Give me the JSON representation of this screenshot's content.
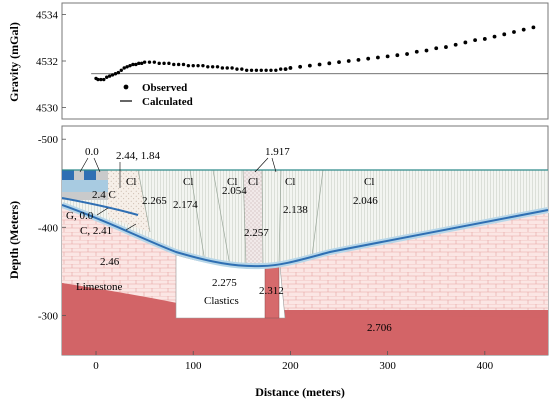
{
  "chart_data": [
    {
      "type": "scatter",
      "panel": "gravity",
      "ylabel": "Gravity (mGal)",
      "ylim": [
        4529.5,
        4534.5
      ],
      "xlim": [
        -35,
        465
      ],
      "yticks": [
        "4530",
        "4532",
        "4534"
      ],
      "ytick_values": [
        4530,
        4532,
        4534
      ],
      "legend": {
        "position": "left",
        "entries": [
          "Observed",
          "Calculated"
        ]
      },
      "calculated_line": {
        "x": [
          -5,
          465
        ],
        "y": [
          4531.45,
          4531.45
        ]
      },
      "series": [
        {
          "name": "Observed",
          "x": [
            0,
            2,
            5,
            8,
            11,
            14,
            17,
            20,
            23,
            26,
            29,
            32,
            35,
            38,
            41,
            44,
            47,
            50,
            55,
            60,
            65,
            70,
            75,
            80,
            85,
            90,
            95,
            100,
            105,
            110,
            115,
            120,
            125,
            130,
            135,
            140,
            145,
            150,
            155,
            160,
            165,
            170,
            175,
            180,
            185,
            190,
            195,
            200,
            210,
            220,
            230,
            240,
            250,
            260,
            270,
            280,
            290,
            300,
            310,
            320,
            330,
            340,
            350,
            360,
            370,
            380,
            390,
            400,
            410,
            420,
            430,
            440,
            450
          ],
          "y": [
            4531.25,
            4531.2,
            4531.2,
            4531.2,
            4531.3,
            4531.35,
            4531.4,
            4531.45,
            4531.5,
            4531.6,
            4531.7,
            4531.75,
            4531.8,
            4531.85,
            4531.85,
            4531.9,
            4531.9,
            4531.95,
            4531.95,
            4531.95,
            4531.9,
            4531.9,
            4531.9,
            4531.85,
            4531.85,
            4531.85,
            4531.8,
            4531.8,
            4531.8,
            4531.8,
            4531.75,
            4531.75,
            4531.75,
            4531.7,
            4531.7,
            4531.7,
            4531.65,
            4531.65,
            4531.6,
            4531.6,
            4531.6,
            4531.6,
            4531.6,
            4531.6,
            4531.6,
            4531.65,
            4531.65,
            4531.7,
            4531.75,
            4531.8,
            4531.85,
            4531.9,
            4531.95,
            4532.0,
            4532.05,
            4532.1,
            4532.15,
            4532.2,
            4532.25,
            4532.3,
            4532.4,
            4532.45,
            4532.55,
            4532.6,
            4532.7,
            4532.8,
            4532.9,
            4532.95,
            4533.05,
            4533.15,
            4533.25,
            4533.35,
            4533.45
          ]
        }
      ]
    },
    {
      "type": "area",
      "panel": "depth-section",
      "xlabel": "Distance (meters)",
      "ylabel": "Depth (Meters)",
      "xlim": [
        -35,
        465
      ],
      "ylim": [
        -515,
        -255
      ],
      "xticks": [
        "0",
        "100",
        "200",
        "300",
        "400"
      ],
      "xtick_values": [
        0,
        100,
        200,
        300,
        400
      ],
      "yticks": [
        "-500",
        "-400",
        "-300"
      ],
      "ytick_values": [
        -500,
        -400,
        -300
      ],
      "bodies": [
        {
          "label": "Limestone",
          "density": "2.46"
        },
        {
          "label": "Clastics",
          "density": "2.275"
        },
        {
          "label": "",
          "density": "2.312"
        },
        {
          "label": "",
          "density": "2.706"
        },
        {
          "label": "Cl",
          "density": "2.265"
        },
        {
          "label": "Cl",
          "density": "2.174"
        },
        {
          "label": "Cl",
          "density": "2.054"
        },
        {
          "label": "",
          "density": "2.257"
        },
        {
          "label": "Cl",
          "density": "2.138"
        },
        {
          "label": "Cl",
          "density": "2.046"
        },
        {
          "label": "",
          "density": "2.4 C"
        },
        {
          "label": "",
          "density": "0.0"
        },
        {
          "label": "",
          "density": "2.44, 1.84"
        },
        {
          "label": "",
          "density": "1.917"
        },
        {
          "label": "",
          "density": "G, 0.0"
        },
        {
          "label": "",
          "density": "C, 2.41"
        }
      ],
      "colors": {
        "limestone_fill": "#fbe6e4",
        "limestone_brick": "#e39a98",
        "basement_fill": "#d36467",
        "clastics_fill": "#ffffff",
        "salt_fill": "#f1f4ef",
        "salt_lines": "#b8c0b4",
        "blue_layer": "#2f6fb3",
        "light_blue": "#b9d8ea",
        "grey_block": "#c8c9ca",
        "frame": "#7d7d7d"
      }
    }
  ]
}
